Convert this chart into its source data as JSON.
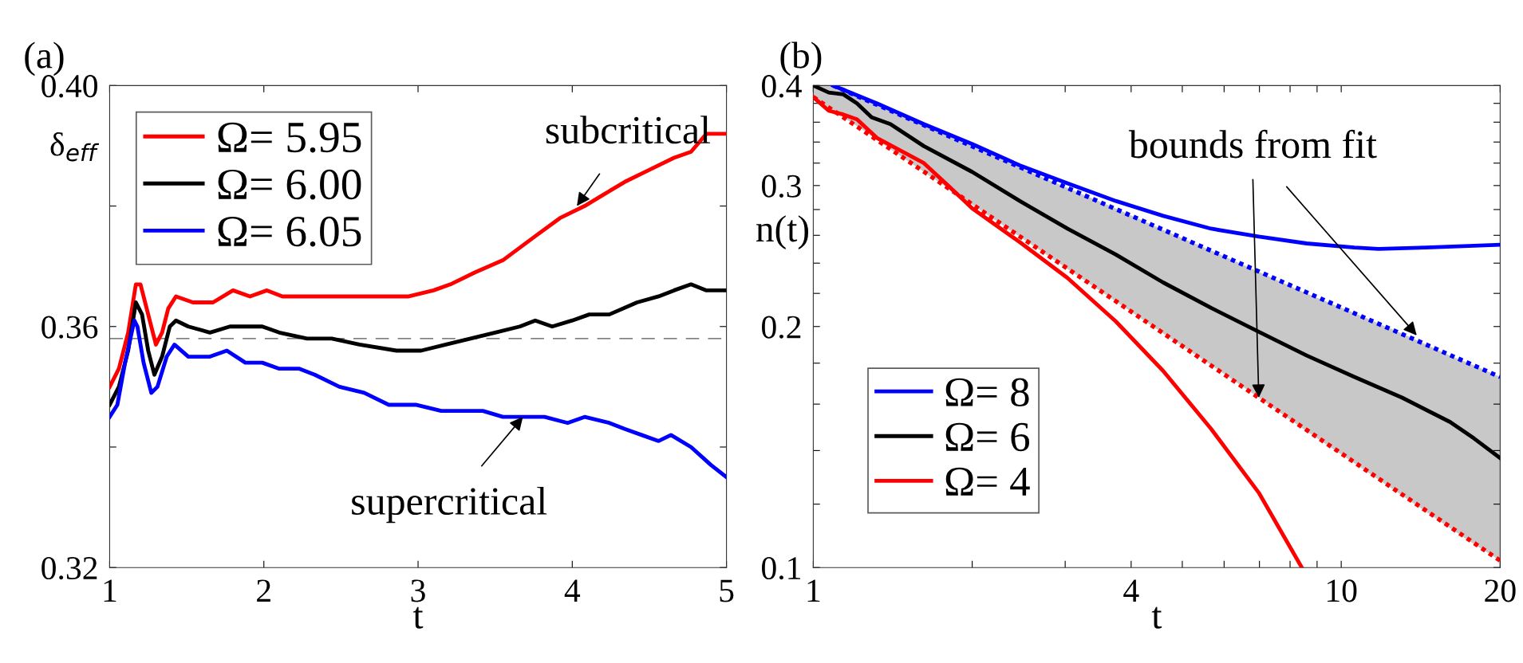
{
  "chart_data": [
    {
      "type": "line",
      "title": "(a)",
      "xlabel": "t",
      "ylabel": "δ$_{eff}$",
      "xlim": [
        1,
        5
      ],
      "xticks": [
        1,
        2,
        3,
        4,
        5
      ],
      "ylim": [
        0.32,
        0.4
      ],
      "yticks": [
        {
          "value": 0.32,
          "label": "0.32"
        },
        {
          "value": 0.34,
          "label": null
        },
        {
          "value": 0.36,
          "label": "0.36"
        },
        {
          "value": 0.38,
          "label": null
        },
        {
          "value": 0.4,
          "label": "0.40"
        }
      ],
      "grid": false,
      "legend": "top left",
      "line_style": "solid",
      "marker": "none",
      "series": [
        {
          "name": "Ω= 5.95",
          "color": "#ff0000",
          "x": [
            1.0,
            1.06,
            1.12,
            1.17,
            1.2,
            1.24,
            1.3,
            1.34,
            1.38,
            1.43,
            1.54,
            1.67,
            1.8,
            1.91,
            2.02,
            2.12,
            2.33,
            2.44,
            2.62,
            2.81,
            2.94,
            3.1,
            3.21,
            3.37,
            3.55,
            3.76,
            3.92,
            4.08,
            4.21,
            4.34,
            4.5,
            4.66,
            4.77,
            4.87,
            5.0
          ],
          "values": [
            0.35,
            0.353,
            0.359,
            0.367,
            0.367,
            0.363,
            0.357,
            0.359,
            0.363,
            0.365,
            0.364,
            0.364,
            0.366,
            0.365,
            0.366,
            0.365,
            0.365,
            0.365,
            0.365,
            0.365,
            0.365,
            0.366,
            0.367,
            0.369,
            0.371,
            0.375,
            0.378,
            0.38,
            0.382,
            0.384,
            0.386,
            0.388,
            0.389,
            0.392,
            0.392
          ]
        },
        {
          "name": "Ω= 6.00",
          "color": "#000000",
          "x": [
            1.0,
            1.06,
            1.12,
            1.17,
            1.21,
            1.25,
            1.29,
            1.34,
            1.39,
            1.43,
            1.51,
            1.65,
            1.78,
            1.88,
            1.99,
            2.1,
            2.28,
            2.44,
            2.62,
            2.86,
            3.02,
            3.18,
            3.34,
            3.5,
            3.66,
            3.76,
            3.87,
            4.0,
            4.11,
            4.24,
            4.42,
            4.56,
            4.66,
            4.77,
            4.87,
            5.0
          ],
          "values": [
            0.347,
            0.35,
            0.356,
            0.364,
            0.362,
            0.356,
            0.352,
            0.355,
            0.36,
            0.361,
            0.36,
            0.359,
            0.36,
            0.36,
            0.36,
            0.359,
            0.358,
            0.358,
            0.357,
            0.356,
            0.356,
            0.357,
            0.358,
            0.359,
            0.36,
            0.361,
            0.36,
            0.361,
            0.362,
            0.362,
            0.364,
            0.365,
            0.366,
            0.367,
            0.366,
            0.366
          ]
        },
        {
          "name": "Ω= 6.05",
          "color": "#0000ff",
          "x": [
            1.0,
            1.05,
            1.1,
            1.16,
            1.18,
            1.22,
            1.27,
            1.31,
            1.37,
            1.42,
            1.51,
            1.65,
            1.76,
            1.88,
            1.99,
            2.1,
            2.23,
            2.33,
            2.49,
            2.65,
            2.81,
            2.99,
            3.15,
            3.42,
            3.55,
            3.68,
            3.82,
            3.97,
            4.08,
            4.24,
            4.34,
            4.45,
            4.56,
            4.64,
            4.77,
            4.9,
            5.0
          ],
          "values": [
            0.345,
            0.347,
            0.354,
            0.361,
            0.36,
            0.354,
            0.349,
            0.35,
            0.355,
            0.357,
            0.355,
            0.355,
            0.356,
            0.354,
            0.354,
            0.353,
            0.353,
            0.352,
            0.35,
            0.349,
            0.347,
            0.347,
            0.346,
            0.346,
            0.345,
            0.345,
            0.345,
            0.344,
            0.345,
            0.344,
            0.343,
            0.342,
            0.341,
            0.342,
            0.34,
            0.337,
            0.335
          ]
        }
      ],
      "ref_lines": [
        {
          "axis": "y",
          "value": 0.358,
          "color": "#555555",
          "line_style": "dashed"
        }
      ],
      "annotations": [
        {
          "text": "subcritical",
          "x": 4.03,
          "y": 0.38
        },
        {
          "text": "supercritical",
          "x": 3.68,
          "y": 0.345
        }
      ]
    },
    {
      "type": "line",
      "title": "(b)",
      "xlabel": "t",
      "ylabel": "n(t)",
      "log": "xy",
      "xlim": [
        1,
        20
      ],
      "xticks": [
        1,
        {
          "value": 2,
          "label": null
        },
        {
          "value": 3,
          "label": null
        },
        4,
        {
          "value": 5,
          "label": null
        },
        {
          "value": 6,
          "label": null
        },
        {
          "value": 7,
          "label": null
        },
        {
          "value": 8,
          "label": null
        },
        {
          "value": 9,
          "label": null
        },
        10,
        20
      ],
      "ylim": [
        0.1,
        0.4
      ],
      "yticks": [
        0.1,
        {
          "value": 0.12,
          "label": null
        },
        {
          "value": 0.14,
          "label": null
        },
        {
          "value": 0.16,
          "label": null
        },
        {
          "value": 0.18,
          "label": null
        },
        0.2,
        {
          "value": 0.22,
          "label": null
        },
        {
          "value": 0.24,
          "label": null
        },
        {
          "value": 0.26,
          "label": null
        },
        {
          "value": 0.28,
          "label": null
        },
        0.3,
        {
          "value": 0.32,
          "label": null
        },
        {
          "value": 0.34,
          "label": null
        },
        {
          "value": 0.36,
          "label": null
        },
        {
          "value": 0.38,
          "label": null
        },
        0.4
      ],
      "grid": false,
      "legend": "bottom left",
      "marker": "none",
      "series": [
        {
          "name": "Ω= 8",
          "color": "#0000ff",
          "line_style": "solid",
          "x": [
            1.09,
            1.32,
            1.62,
            2.0,
            2.46,
            3.03,
            3.74,
            4.6,
            5.67,
            6.98,
            8.6,
            10.59,
            11.76,
            14.48,
            20
          ],
          "values": [
            0.4,
            0.38,
            0.358,
            0.338,
            0.318,
            0.302,
            0.287,
            0.275,
            0.265,
            0.259,
            0.254,
            0.251,
            0.25,
            0.251,
            0.253
          ]
        },
        {
          "name": "Ω= 6",
          "color": "#000000",
          "line_style": "solid",
          "x": [
            1,
            1.07,
            1.14,
            1.21,
            1.29,
            1.4,
            1.62,
            2.0,
            2.46,
            3.03,
            3.74,
            4.6,
            5.67,
            6.98,
            8.6,
            10.59,
            13.04,
            16.07,
            17.84,
            20
          ],
          "values": [
            0.4,
            0.392,
            0.39,
            0.38,
            0.365,
            0.358,
            0.336,
            0.312,
            0.287,
            0.265,
            0.246,
            0.227,
            0.211,
            0.197,
            0.184,
            0.173,
            0.163,
            0.152,
            0.145,
            0.137
          ],
          "lower": [
            0.387,
            0.375,
            0.365,
            0.356,
            0.346,
            0.333,
            0.312,
            0.284,
            0.259,
            0.236,
            0.215,
            0.196,
            0.179,
            0.163,
            0.148,
            0.135,
            0.123,
            0.112,
            0.107,
            0.102
          ],
          "upper": [
            0.4,
            0.4,
            0.395,
            0.388,
            0.381,
            0.372,
            0.357,
            0.336,
            0.316,
            0.298,
            0.281,
            0.264,
            0.249,
            0.234,
            0.22,
            0.208,
            0.196,
            0.184,
            0.179,
            0.173
          ]
        },
        {
          "name": "Ω= 4",
          "color": "#ff0000",
          "line_style": "solid",
          "x": [
            1,
            1.07,
            1.14,
            1.21,
            1.32,
            1.62,
            1.8,
            2.0,
            2.46,
            3.03,
            3.74,
            4.6,
            5.67,
            6.98,
            8.42
          ],
          "values": [
            0.387,
            0.372,
            0.368,
            0.363,
            0.344,
            0.32,
            0.3,
            0.281,
            0.255,
            0.23,
            0.203,
            0.176,
            0.149,
            0.124,
            0.1
          ]
        },
        {
          "color": "#0000ff",
          "line_style": "dotted",
          "x": [
            1.09,
            20
          ],
          "values": [
            0.4,
            0.173
          ]
        },
        {
          "color": "#ff0000",
          "line_style": "dotted",
          "x": [
            1,
            20
          ],
          "values": [
            0.387,
            0.102
          ]
        }
      ],
      "annotations": [
        {
          "text": "bounds from fit",
          "x": 13.9,
          "y": 0.195
        }
      ]
    }
  ]
}
